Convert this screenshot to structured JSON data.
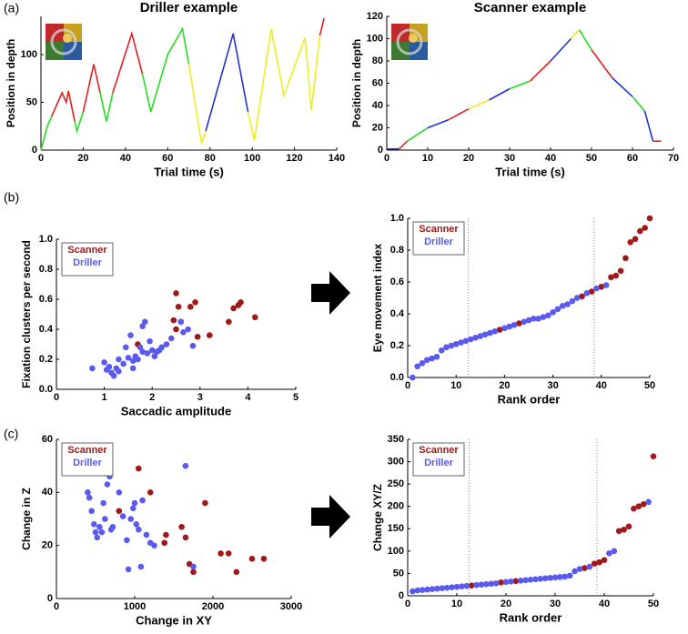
{
  "chart_data": [
    {
      "type": "line",
      "panel": "(a)",
      "title": "Driller example",
      "xlabel": "Trial time (s)",
      "ylabel": "Position in depth",
      "xlim": [
        0,
        140
      ],
      "ylim": [
        0,
        140
      ],
      "xticks": [
        0,
        20,
        40,
        60,
        80,
        100,
        120,
        140
      ],
      "yticks": [
        0,
        50,
        100
      ],
      "series": [
        {
          "color": "#22dd22",
          "x": [
            0,
            3,
            5
          ],
          "values": [
            0,
            25,
            35
          ]
        },
        {
          "color": "#e02020",
          "x": [
            5,
            10,
            12,
            13,
            16
          ],
          "values": [
            35,
            60,
            50,
            62,
            30
          ]
        },
        {
          "color": "#22dd22",
          "x": [
            16,
            17,
            20
          ],
          "values": [
            30,
            20,
            40
          ]
        },
        {
          "color": "#e02020",
          "x": [
            20,
            25,
            28
          ],
          "values": [
            40,
            90,
            60
          ]
        },
        {
          "color": "#22dd22",
          "x": [
            28,
            31,
            34
          ],
          "values": [
            60,
            30,
            60
          ]
        },
        {
          "color": "#e02020",
          "x": [
            34,
            43,
            48
          ],
          "values": [
            60,
            122,
            80
          ]
        },
        {
          "color": "#22dd22",
          "x": [
            48,
            52,
            60,
            67,
            70
          ],
          "values": [
            80,
            40,
            100,
            127,
            90
          ]
        },
        {
          "color": "#eeee22",
          "x": [
            70,
            76,
            78
          ],
          "values": [
            90,
            7,
            20
          ]
        },
        {
          "color": "#2233cc",
          "x": [
            78,
            91,
            98
          ],
          "values": [
            20,
            122,
            40
          ]
        },
        {
          "color": "#eeee22",
          "x": [
            98,
            101,
            109,
            115,
            125,
            128,
            132
          ],
          "values": [
            40,
            10,
            127,
            57,
            118,
            42,
            120
          ]
        },
        {
          "color": "#e02020",
          "x": [
            132,
            134
          ],
          "values": [
            120,
            138
          ]
        }
      ]
    },
    {
      "type": "line",
      "title": "Scanner example",
      "xlabel": "Trial time (s)",
      "ylabel": "Position in depth",
      "xlim": [
        0,
        70
      ],
      "ylim": [
        0,
        120
      ],
      "xticks": [
        0,
        10,
        20,
        30,
        40,
        50,
        60,
        70
      ],
      "yticks": [
        0,
        20,
        40,
        60,
        80,
        100,
        120
      ],
      "series": [
        {
          "color": "#2233cc",
          "x": [
            0,
            3
          ],
          "values": [
            1,
            1
          ]
        },
        {
          "color": "#e02020",
          "x": [
            3,
            5
          ],
          "values": [
            1,
            8
          ]
        },
        {
          "color": "#22dd22",
          "x": [
            5,
            10
          ],
          "values": [
            8,
            20
          ]
        },
        {
          "color": "#2233cc",
          "x": [
            10,
            15
          ],
          "values": [
            20,
            27
          ]
        },
        {
          "color": "#e02020",
          "x": [
            15,
            20
          ],
          "values": [
            27,
            37
          ]
        },
        {
          "color": "#eeee22",
          "x": [
            20,
            25
          ],
          "values": [
            37,
            45
          ]
        },
        {
          "color": "#2233cc",
          "x": [
            25,
            30
          ],
          "values": [
            45,
            55
          ]
        },
        {
          "color": "#22dd22",
          "x": [
            30,
            35
          ],
          "values": [
            55,
            62
          ]
        },
        {
          "color": "#e02020",
          "x": [
            35,
            40
          ],
          "values": [
            62,
            80
          ]
        },
        {
          "color": "#2233cc",
          "x": [
            40,
            45
          ],
          "values": [
            80,
            100
          ]
        },
        {
          "color": "#eeee22",
          "x": [
            45,
            47
          ],
          "values": [
            100,
            108
          ]
        },
        {
          "color": "#22dd22",
          "x": [
            47,
            50
          ],
          "values": [
            108,
            90
          ]
        },
        {
          "color": "#e02020",
          "x": [
            50,
            55
          ],
          "values": [
            90,
            65
          ]
        },
        {
          "color": "#2233cc",
          "x": [
            55,
            60
          ],
          "values": [
            65,
            48
          ]
        },
        {
          "color": "#22dd22",
          "x": [
            60,
            63
          ],
          "values": [
            48,
            35
          ]
        },
        {
          "color": "#2233cc",
          "x": [
            63,
            65
          ],
          "values": [
            35,
            8
          ]
        },
        {
          "color": "#e02020",
          "x": [
            65,
            67
          ],
          "values": [
            8,
            8
          ]
        }
      ]
    },
    {
      "type": "scatter",
      "panel": "(b)",
      "xlabel": "Saccadic amplitude",
      "ylabel": "Fixation clusters per second",
      "xlim": [
        0,
        5
      ],
      "ylim": [
        0,
        1
      ],
      "xticks": [
        0,
        1,
        2,
        3,
        4,
        5
      ],
      "yticks": [
        {
          "value": 0,
          "label": "0.0"
        },
        0.2,
        0.4,
        0.6,
        0.8,
        {
          "value": 1,
          "label": "1.0"
        }
      ],
      "series": [
        {
          "name": "Scanner",
          "color": "#a01818",
          "x": [
            2.5,
            2.55,
            2.45,
            2.5,
            2.6,
            2.8,
            2.9,
            2.95,
            3.2,
            3.6,
            3.7,
            3.8,
            3.85,
            4.15,
            1.7
          ],
          "values": [
            0.64,
            0.55,
            0.46,
            0.4,
            0.45,
            0.55,
            0.58,
            0.35,
            0.36,
            0.45,
            0.54,
            0.56,
            0.58,
            0.48,
            0.3
          ]
        },
        {
          "name": "Driller",
          "color": "#5a5af0",
          "x": [
            0.75,
            1.0,
            1.05,
            1.1,
            1.15,
            1.2,
            1.25,
            1.3,
            1.4,
            1.45,
            1.5,
            1.55,
            1.6,
            1.6,
            1.65,
            1.7,
            1.75,
            1.8,
            1.8,
            1.85,
            1.9,
            1.95,
            2.0,
            2.05,
            2.1,
            2.15,
            2.2,
            2.3,
            2.4,
            2.6,
            2.65,
            2.75,
            2.85,
            1.3
          ],
          "values": [
            0.14,
            0.18,
            0.13,
            0.15,
            0.11,
            0.09,
            0.14,
            0.2,
            0.17,
            0.28,
            0.21,
            0.36,
            0.19,
            0.14,
            0.22,
            0.2,
            0.28,
            0.42,
            0.25,
            0.45,
            0.24,
            0.32,
            0.26,
            0.22,
            0.25,
            0.26,
            0.28,
            0.3,
            0.34,
            0.45,
            0.38,
            0.4,
            0.29,
            0.12
          ]
        }
      ]
    },
    {
      "type": "scatter",
      "xlabel": "Rank order",
      "ylabel": "Eye movement index",
      "xlim": [
        0,
        50
      ],
      "ylim": [
        0,
        1
      ],
      "xticks": [
        0,
        10,
        20,
        30,
        40,
        50
      ],
      "yticks": [
        {
          "value": 0,
          "label": "0.0"
        },
        0.2,
        0.4,
        0.6,
        0.8,
        {
          "value": 1,
          "label": "1.0"
        }
      ],
      "vlines": [
        12.5,
        38.5
      ],
      "series": [
        {
          "name": "Scanner",
          "color": "#a01818",
          "x": [
            19,
            23,
            36,
            38,
            40,
            42,
            43,
            44,
            45,
            46,
            47,
            48,
            49,
            50
          ],
          "values": [
            0.3,
            0.34,
            0.51,
            0.54,
            0.57,
            0.63,
            0.64,
            0.67,
            0.75,
            0.85,
            0.87,
            0.92,
            0.94,
            1.0
          ]
        },
        {
          "name": "Driller",
          "color": "#5a5af0",
          "x": [
            1,
            2,
            3,
            4,
            5,
            6,
            7,
            8,
            9,
            10,
            11,
            12,
            13,
            14,
            15,
            16,
            17,
            18,
            20,
            21,
            22,
            24,
            25,
            26,
            27,
            28,
            29,
            30,
            31,
            32,
            33,
            34,
            35,
            37,
            39,
            41
          ],
          "values": [
            0,
            0.07,
            0.09,
            0.11,
            0.12,
            0.13,
            0.17,
            0.19,
            0.2,
            0.21,
            0.22,
            0.23,
            0.24,
            0.25,
            0.26,
            0.27,
            0.28,
            0.29,
            0.31,
            0.32,
            0.33,
            0.35,
            0.36,
            0.37,
            0.37,
            0.38,
            0.39,
            0.41,
            0.43,
            0.45,
            0.46,
            0.48,
            0.5,
            0.53,
            0.56,
            0.58
          ]
        }
      ]
    },
    {
      "type": "scatter",
      "panel": "(c)",
      "xlabel": "Change in XY",
      "ylabel": "Change in Z",
      "xlim": [
        0,
        3000
      ],
      "ylim": [
        0,
        60
      ],
      "xticks": [
        0,
        1000,
        2000,
        3000
      ],
      "yticks": [
        0,
        20,
        40,
        60
      ],
      "series": [
        {
          "name": "Scanner",
          "color": "#a01818",
          "x": [
            1050,
            800,
            1200,
            1400,
            1600,
            1650,
            1700,
            1750,
            1900,
            2100,
            2200,
            2300,
            2500,
            2650,
            1380
          ],
          "values": [
            49,
            33,
            40,
            24,
            27,
            23,
            13,
            10,
            36,
            17,
            17,
            10,
            15,
            15,
            21
          ]
        },
        {
          "name": "Driller",
          "color": "#5a5af0",
          "x": [
            400,
            420,
            450,
            480,
            500,
            520,
            550,
            580,
            600,
            620,
            650,
            680,
            700,
            720,
            800,
            850,
            900,
            920,
            950,
            980,
            1000,
            1020,
            1050,
            1080,
            1100,
            1150,
            1200,
            1250,
            1650,
            1750
          ],
          "values": [
            40,
            38,
            33,
            28,
            25,
            23,
            27,
            25,
            36,
            30,
            43,
            46,
            26,
            27,
            40,
            31,
            22,
            11,
            30,
            34,
            36,
            28,
            26,
            12,
            37,
            24,
            21,
            20,
            50,
            12
          ]
        }
      ]
    },
    {
      "type": "scatter",
      "xlabel": "Rank order",
      "ylabel": "Change XY/Z",
      "xlim": [
        0,
        50
      ],
      "ylim": [
        0,
        350
      ],
      "xticks": [
        0,
        10,
        20,
        30,
        40,
        50
      ],
      "yticks": [
        0,
        50,
        100,
        150,
        200,
        250,
        300,
        350
      ],
      "vlines": [
        12.5,
        38.5
      ],
      "series": [
        {
          "name": "Scanner",
          "color": "#a01818",
          "x": [
            13,
            19,
            22,
            36,
            38,
            39,
            40,
            43,
            44,
            45,
            46,
            47,
            48,
            50
          ],
          "values": [
            23,
            30,
            33,
            62,
            72,
            75,
            80,
            145,
            148,
            155,
            195,
            200,
            205,
            312
          ]
        },
        {
          "name": "Driller",
          "color": "#5a5af0",
          "x": [
            1,
            2,
            3,
            4,
            5,
            6,
            7,
            8,
            9,
            10,
            11,
            12,
            14,
            15,
            16,
            17,
            18,
            20,
            21,
            23,
            24,
            25,
            26,
            27,
            28,
            29,
            30,
            31,
            32,
            33,
            34,
            35,
            37,
            41,
            42,
            49
          ],
          "values": [
            10,
            12,
            13,
            14,
            15,
            16,
            17,
            18,
            19,
            20,
            21,
            22,
            24,
            25,
            26,
            27,
            28,
            31,
            32,
            34,
            35,
            36,
            37,
            38,
            39,
            40,
            41,
            42,
            43,
            45,
            55,
            60,
            65,
            95,
            100,
            210
          ]
        }
      ]
    }
  ]
}
